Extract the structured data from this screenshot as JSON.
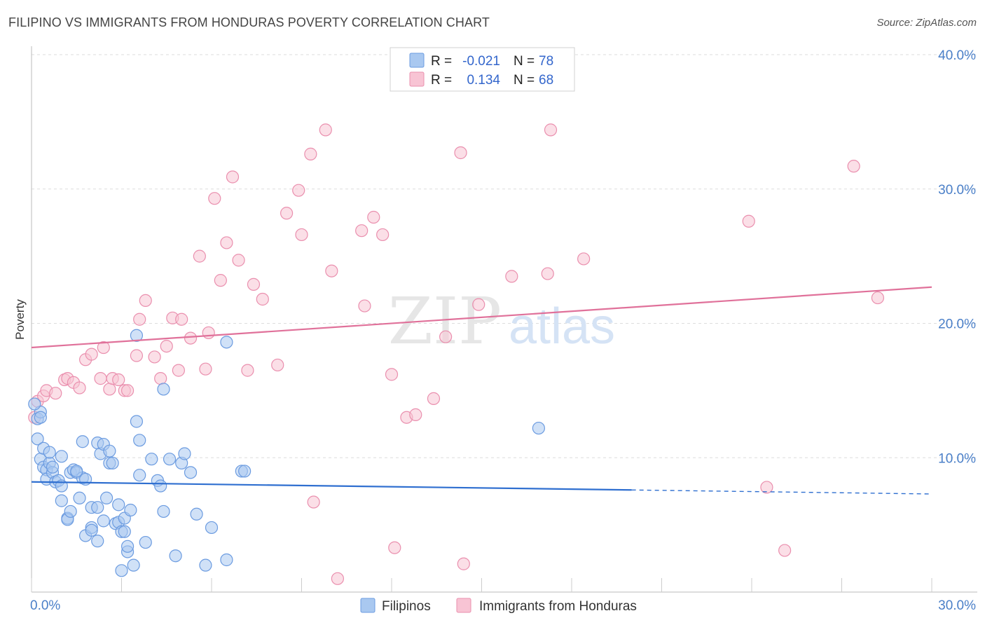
{
  "title": "FILIPINO VS IMMIGRANTS FROM HONDURAS POVERTY CORRELATION CHART",
  "source": "Source: ZipAtlas.com",
  "watermark": {
    "zip": "ZIP",
    "atlas": "atlas"
  },
  "legend": {
    "rows": [
      {
        "r_label": "R =",
        "r_value": "-0.021",
        "n_label": "N =",
        "n_value": "78",
        "color": "#a9c8f0",
        "border": "#6b9be0"
      },
      {
        "r_label": "R =",
        "r_value": "0.134",
        "n_label": "N =",
        "n_value": "68",
        "color": "#f8c4d4",
        "border": "#ea8fae"
      }
    ]
  },
  "chart_data": {
    "type": "scatter",
    "title": "FILIPINO VS IMMIGRANTS FROM HONDURAS POVERTY CORRELATION CHART",
    "xlabel": "",
    "ylabel": "Poverty",
    "xlim": [
      0,
      30
    ],
    "ylim": [
      0,
      40
    ],
    "y_ticks": [
      10,
      20,
      30,
      40
    ],
    "y_tick_labels": [
      "10.0%",
      "20.0%",
      "30.0%",
      "40.0%"
    ],
    "x_tick_labels": [
      "0.0%",
      "30.0%"
    ],
    "grid": true,
    "series": [
      {
        "name": "Filipinos",
        "color": "#a9c8f0",
        "edge": "#6b9be0",
        "trend": {
          "x": [
            0,
            20
          ],
          "y": [
            8.2,
            7.6
          ],
          "dashed_to": [
            30,
            7.3
          ],
          "color": "#2f6fd0"
        },
        "points": [
          [
            0.2,
            12.9
          ],
          [
            0.2,
            11.4
          ],
          [
            0.3,
            13.4
          ],
          [
            0.3,
            9.9
          ],
          [
            0.4,
            10.7
          ],
          [
            0.4,
            9.3
          ],
          [
            0.5,
            9.1
          ],
          [
            0.5,
            8.4
          ],
          [
            0.6,
            9.6
          ],
          [
            0.6,
            10.4
          ],
          [
            0.7,
            8.9
          ],
          [
            0.7,
            9.3
          ],
          [
            0.8,
            8.2
          ],
          [
            0.9,
            8.3
          ],
          [
            1.0,
            10.1
          ],
          [
            1.0,
            7.9
          ],
          [
            1.0,
            6.8
          ],
          [
            1.2,
            5.5
          ],
          [
            1.2,
            5.4
          ],
          [
            1.3,
            6.0
          ],
          [
            1.3,
            8.9
          ],
          [
            1.4,
            9.1
          ],
          [
            1.5,
            8.9
          ],
          [
            1.6,
            7.0
          ],
          [
            1.7,
            11.2
          ],
          [
            1.7,
            8.5
          ],
          [
            1.8,
            8.4
          ],
          [
            1.8,
            4.2
          ],
          [
            2.0,
            4.8
          ],
          [
            2.0,
            4.6
          ],
          [
            2.0,
            6.3
          ],
          [
            2.2,
            6.3
          ],
          [
            2.2,
            3.8
          ],
          [
            2.2,
            11.1
          ],
          [
            2.3,
            10.3
          ],
          [
            2.4,
            11.0
          ],
          [
            2.4,
            5.3
          ],
          [
            2.5,
            7.0
          ],
          [
            2.6,
            10.5
          ],
          [
            2.6,
            9.6
          ],
          [
            2.7,
            9.6
          ],
          [
            2.8,
            5.1
          ],
          [
            2.9,
            5.2
          ],
          [
            2.9,
            6.5
          ],
          [
            3.0,
            1.6
          ],
          [
            3.0,
            4.5
          ],
          [
            3.1,
            4.5
          ],
          [
            3.1,
            5.5
          ],
          [
            3.2,
            3.0
          ],
          [
            3.2,
            3.4
          ],
          [
            3.3,
            6.1
          ],
          [
            3.4,
            2.0
          ],
          [
            3.5,
            19.1
          ],
          [
            3.5,
            12.7
          ],
          [
            3.6,
            11.3
          ],
          [
            3.6,
            8.7
          ],
          [
            3.8,
            3.7
          ],
          [
            4.0,
            9.9
          ],
          [
            4.2,
            8.3
          ],
          [
            4.3,
            7.9
          ],
          [
            4.4,
            6.0
          ],
          [
            4.4,
            15.1
          ],
          [
            4.6,
            9.9
          ],
          [
            4.8,
            2.7
          ],
          [
            5.0,
            9.6
          ],
          [
            5.1,
            10.3
          ],
          [
            5.3,
            8.9
          ],
          [
            5.5,
            5.8
          ],
          [
            5.8,
            2.0
          ],
          [
            6.0,
            4.8
          ],
          [
            6.5,
            18.6
          ],
          [
            6.5,
            2.4
          ],
          [
            7.0,
            9.0
          ],
          [
            7.1,
            9.0
          ],
          [
            16.9,
            12.2
          ],
          [
            0.1,
            14.0
          ],
          [
            0.3,
            13.0
          ],
          [
            1.5,
            9.0
          ]
        ]
      },
      {
        "name": "Immigrants from Honduras",
        "color": "#f8c4d4",
        "edge": "#ea8fae",
        "trend": {
          "x": [
            0,
            30
          ],
          "y": [
            18.2,
            22.7
          ],
          "color": "#e0719a"
        },
        "points": [
          [
            0.1,
            13.0
          ],
          [
            0.2,
            14.2
          ],
          [
            0.4,
            14.6
          ],
          [
            0.5,
            15.0
          ],
          [
            0.8,
            14.8
          ],
          [
            1.1,
            15.8
          ],
          [
            1.2,
            15.9
          ],
          [
            1.4,
            15.6
          ],
          [
            1.6,
            15.2
          ],
          [
            1.8,
            17.3
          ],
          [
            2.0,
            17.7
          ],
          [
            2.3,
            15.9
          ],
          [
            2.4,
            18.2
          ],
          [
            2.6,
            15.1
          ],
          [
            2.7,
            15.9
          ],
          [
            2.9,
            15.8
          ],
          [
            3.1,
            15.0
          ],
          [
            3.2,
            15.0
          ],
          [
            3.5,
            17.6
          ],
          [
            3.6,
            20.3
          ],
          [
            3.8,
            21.7
          ],
          [
            4.1,
            17.5
          ],
          [
            4.3,
            15.9
          ],
          [
            4.5,
            18.3
          ],
          [
            4.7,
            20.4
          ],
          [
            4.9,
            16.5
          ],
          [
            5.0,
            20.3
          ],
          [
            5.3,
            18.9
          ],
          [
            5.6,
            25.0
          ],
          [
            5.8,
            16.6
          ],
          [
            5.9,
            19.3
          ],
          [
            6.1,
            29.3
          ],
          [
            6.3,
            23.2
          ],
          [
            6.5,
            26.0
          ],
          [
            6.7,
            30.9
          ],
          [
            6.9,
            24.7
          ],
          [
            7.2,
            16.5
          ],
          [
            7.4,
            22.9
          ],
          [
            7.7,
            21.8
          ],
          [
            8.2,
            16.9
          ],
          [
            8.5,
            28.2
          ],
          [
            8.9,
            29.9
          ],
          [
            9.0,
            26.6
          ],
          [
            9.4,
            6.7
          ],
          [
            9.3,
            32.6
          ],
          [
            9.8,
            34.4
          ],
          [
            10.0,
            23.9
          ],
          [
            10.2,
            1.0
          ],
          [
            11.0,
            26.9
          ],
          [
            11.1,
            21.3
          ],
          [
            11.4,
            27.9
          ],
          [
            11.7,
            26.6
          ],
          [
            12.0,
            16.2
          ],
          [
            12.1,
            3.3
          ],
          [
            12.5,
            13.0
          ],
          [
            12.8,
            13.2
          ],
          [
            13.4,
            14.4
          ],
          [
            14.3,
            32.7
          ],
          [
            14.4,
            2.1
          ],
          [
            14.9,
            21.4
          ],
          [
            16.0,
            23.5
          ],
          [
            17.2,
            23.7
          ],
          [
            17.3,
            34.4
          ],
          [
            18.4,
            24.8
          ],
          [
            23.9,
            27.6
          ],
          [
            24.5,
            7.8
          ],
          [
            25.1,
            3.1
          ],
          [
            27.4,
            31.7
          ]
        ],
        "extra_points": [
          [
            13.8,
            19.0
          ],
          [
            28.2,
            21.9
          ]
        ]
      }
    ]
  },
  "bottom_legend": [
    {
      "label": "Filipinos",
      "color": "#a9c8f0",
      "border": "#6b9be0"
    },
    {
      "label": "Immigrants from Honduras",
      "color": "#f8c4d4",
      "border": "#ea8fae"
    }
  ]
}
